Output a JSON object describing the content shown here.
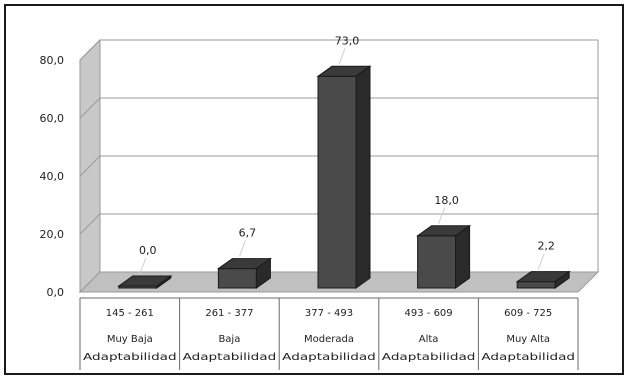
{
  "chart_data": {
    "type": "bar",
    "title": "",
    "xlabel": "",
    "ylabel": "",
    "ylim": [
      0,
      80
    ],
    "yticks": [
      "0,0",
      "20,0",
      "40,0",
      "60,0",
      "80,0"
    ],
    "grid": true,
    "legend": "none",
    "categories": [
      {
        "range": "145 - 261",
        "line2": "Muy Baja",
        "line3": "Adaptabilidad"
      },
      {
        "range": "261 - 377",
        "line2": "Baja",
        "line3": "Adaptabilidad"
      },
      {
        "range": "377 - 493",
        "line2": "Moderada",
        "line3": "Adaptabilidad"
      },
      {
        "range": "493 - 609",
        "line2": "Alta",
        "line3": "Adaptabilidad"
      },
      {
        "range": "609 - 725",
        "line2": "Muy Alta",
        "line3": "Adaptabilidad"
      }
    ],
    "values": [
      0.0,
      6.7,
      73.0,
      18.0,
      2.2
    ],
    "data_labels": [
      "0,0",
      "6,7",
      "73,0",
      "18,0",
      "2,2"
    ],
    "colors": {
      "bar_front": "#4a4a4a",
      "bar_top": "#3a3a3a",
      "bar_side": "#2a2a2a",
      "wall": "#ffffff",
      "wall_side": "#c8c8c8",
      "floor": "#c0c0c0",
      "gridline": "#9a9a9a",
      "border": "#1a1a1a"
    }
  }
}
